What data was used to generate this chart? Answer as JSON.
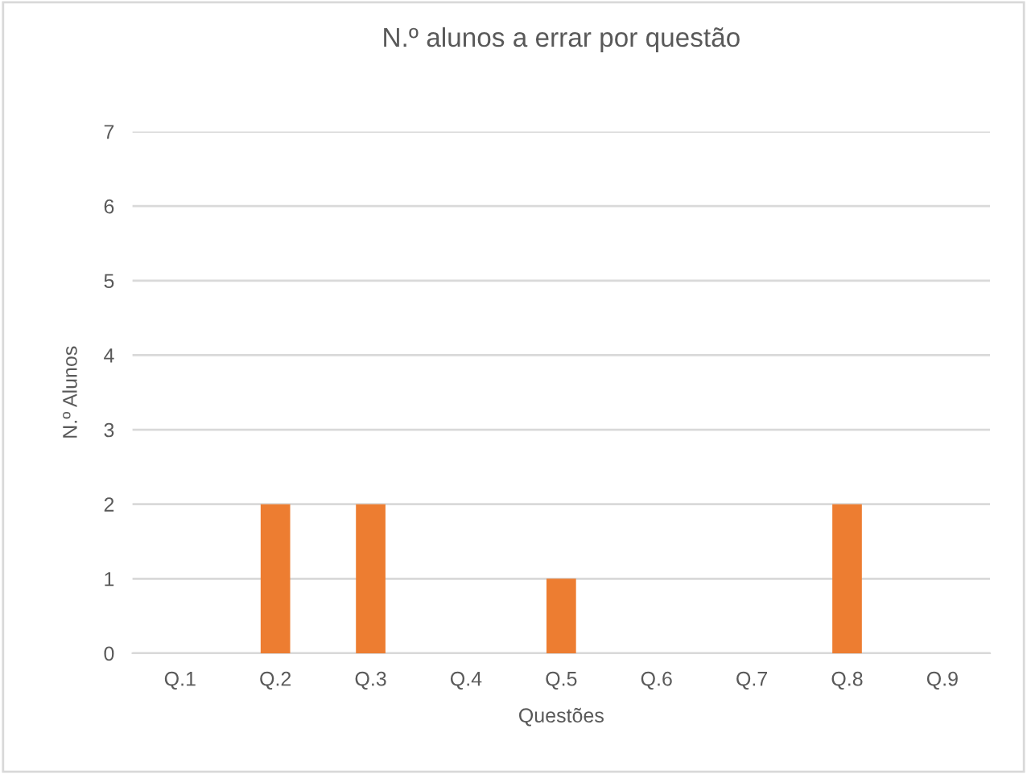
{
  "chart_data": {
    "type": "bar",
    "title": "N.º alunos a errar por questão",
    "xlabel": "Questões",
    "ylabel": "N.º Alunos",
    "categories": [
      "Q.1",
      "Q.2",
      "Q.3",
      "Q.4",
      "Q.5",
      "Q.6",
      "Q.7",
      "Q.8",
      "Q.9"
    ],
    "values": [
      0,
      2,
      2,
      0,
      1,
      0,
      0,
      2,
      0
    ],
    "color": "#ed7d31",
    "ylim": [
      0,
      7
    ],
    "yticks": [
      0,
      1,
      2,
      3,
      4,
      5,
      6,
      7
    ],
    "grid": "y",
    "legend": false
  }
}
